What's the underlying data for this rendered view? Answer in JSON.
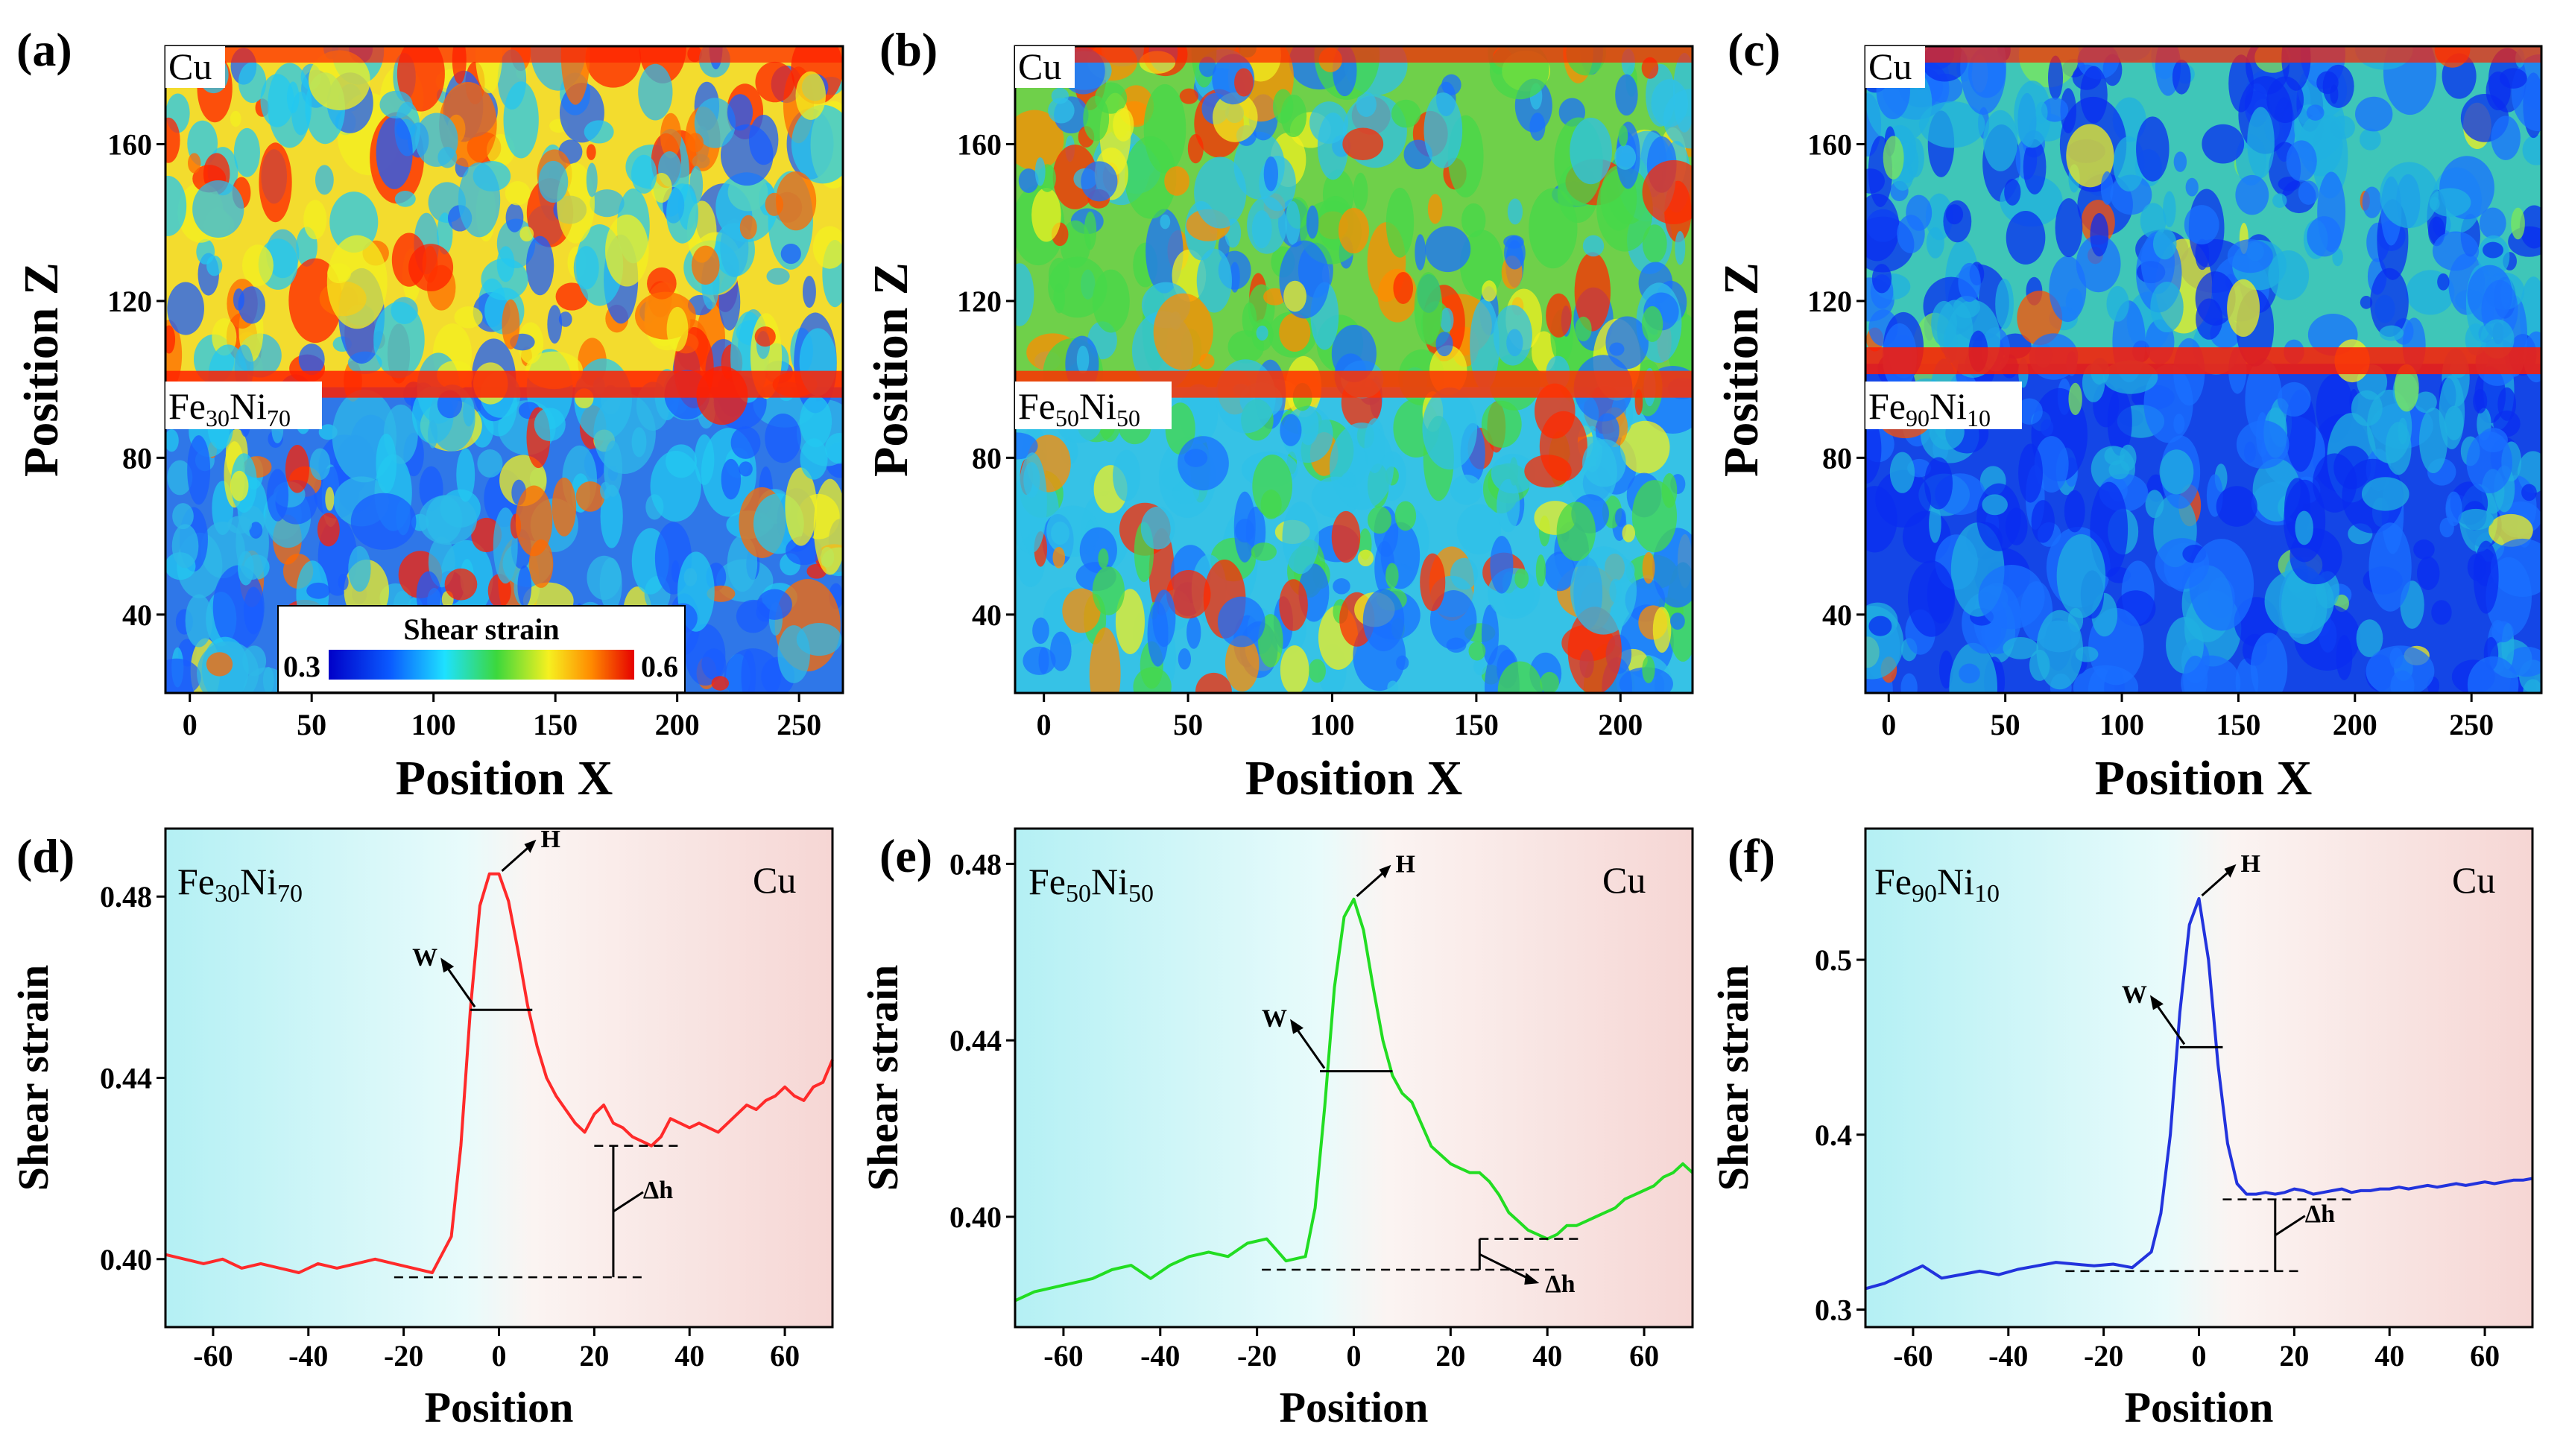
{
  "chart_data": [
    {
      "id": "a",
      "type": "heatmap",
      "panel_label": "(a)",
      "xlabel": "Position X",
      "ylabel": "Position Z",
      "xlim": [
        -10,
        268
      ],
      "ylim": [
        20,
        185
      ],
      "xticks": [
        0,
        50,
        100,
        150,
        200,
        250
      ],
      "yticks": [
        40,
        80,
        120,
        160
      ],
      "interface_z": 98,
      "top_label": "Cu",
      "bottom_label": {
        "base": "Fe",
        "sub1": "30",
        "mid": "Ni",
        "sub2": "70"
      },
      "colorbar": {
        "title": "Shear strain",
        "min": "0.3",
        "max": "0.6"
      },
      "colors": {
        "top": "#f3dc2e",
        "band": "#ff2000",
        "bottom": "#2f77e8"
      }
    },
    {
      "id": "b",
      "type": "heatmap",
      "panel_label": "(b)",
      "xlabel": "Position X",
      "ylabel": "Position Z",
      "xlim": [
        -10,
        225
      ],
      "ylim": [
        20,
        185
      ],
      "xticks": [
        0,
        50,
        100,
        150,
        200
      ],
      "yticks": [
        40,
        80,
        120,
        160
      ],
      "interface_z": 98,
      "top_label": "Cu",
      "bottom_label": {
        "base": "Fe",
        "sub1": "50",
        "mid": "Ni",
        "sub2": "50"
      },
      "colors": {
        "top": "#6fd04a",
        "band": "#ff3000",
        "bottom": "#36c2e6"
      }
    },
    {
      "id": "c",
      "type": "heatmap",
      "panel_label": "(c)",
      "xlabel": "Position X",
      "ylabel": "Position Z",
      "xlim": [
        -10,
        280
      ],
      "ylim": [
        20,
        185
      ],
      "xticks": [
        0,
        50,
        100,
        150,
        200,
        250
      ],
      "yticks": [
        40,
        80,
        120,
        160
      ],
      "interface_z": 104,
      "top_label": "Cu",
      "bottom_label": {
        "base": "Fe",
        "sub1": "90",
        "mid": "Ni",
        "sub2": "10"
      },
      "colors": {
        "top": "#3fc6b8",
        "band": "#ff1a00",
        "bottom": "#1446e6"
      }
    },
    {
      "id": "d",
      "type": "line",
      "panel_label": "(d)",
      "xlabel": "Position",
      "ylabel": "Shear strain",
      "xlim": [
        -70,
        70
      ],
      "ylim": [
        0.385,
        0.495
      ],
      "xticks": [
        -60,
        -40,
        -20,
        0,
        20,
        40,
        60
      ],
      "yticks": [
        0.4,
        0.44,
        0.48
      ],
      "ytick_labels": [
        "0.40",
        "0.44",
        "0.48"
      ],
      "left_label": {
        "base": "Fe",
        "sub1": "30",
        "mid": "Ni",
        "sub2": "70"
      },
      "right_label": "Cu",
      "line_color": "#ff2a2a",
      "series": [
        {
          "name": "Fe30Ni70",
          "x": [
            -70,
            -66,
            -62,
            -58,
            -54,
            -50,
            -46,
            -42,
            -38,
            -34,
            -30,
            -26,
            -22,
            -18,
            -14,
            -10,
            -8,
            -6,
            -4,
            -2,
            0,
            2,
            4,
            6,
            8,
            10,
            12,
            14,
            16,
            18,
            20,
            22,
            24,
            26,
            28,
            30,
            32,
            34,
            36,
            38,
            40,
            42,
            44,
            46,
            48,
            50,
            52,
            54,
            56,
            58,
            60,
            62,
            64,
            66,
            68,
            70
          ],
          "y": [
            0.401,
            0.4,
            0.399,
            0.4,
            0.398,
            0.399,
            0.398,
            0.397,
            0.399,
            0.398,
            0.399,
            0.4,
            0.399,
            0.398,
            0.397,
            0.405,
            0.425,
            0.455,
            0.478,
            0.485,
            0.485,
            0.479,
            0.468,
            0.456,
            0.447,
            0.44,
            0.436,
            0.433,
            0.43,
            0.428,
            0.432,
            0.434,
            0.43,
            0.429,
            0.427,
            0.426,
            0.425,
            0.427,
            0.431,
            0.43,
            0.429,
            0.43,
            0.429,
            0.428,
            0.43,
            0.432,
            0.434,
            0.433,
            0.435,
            0.436,
            0.438,
            0.436,
            0.435,
            0.438,
            0.439,
            0.444
          ]
        }
      ],
      "annotations": {
        "H": "H",
        "W": "W",
        "dh": "Δh"
      },
      "peak": [
        0,
        0.485
      ],
      "w_level": 0.455,
      "w_span": [
        -6,
        7
      ],
      "dh_low": 0.396,
      "dh_high": 0.425,
      "dh_x": 24,
      "dash_low": [
        -22,
        30
      ],
      "dash_high": [
        20,
        38
      ]
    },
    {
      "id": "e",
      "type": "line",
      "panel_label": "(e)",
      "xlabel": "Position",
      "ylabel": "Shear strain",
      "xlim": [
        -70,
        70
      ],
      "ylim": [
        0.375,
        0.488
      ],
      "xticks": [
        -60,
        -40,
        -20,
        0,
        20,
        40,
        60
      ],
      "yticks": [
        0.4,
        0.44,
        0.48
      ],
      "ytick_labels": [
        "0.40",
        "0.44",
        "0.48"
      ],
      "left_label": {
        "base": "Fe",
        "sub1": "50",
        "mid": "Ni",
        "sub2": "50"
      },
      "right_label": "Cu",
      "line_color": "#22dd22",
      "series": [
        {
          "name": "Fe50Ni50",
          "x": [
            -70,
            -66,
            -62,
            -58,
            -54,
            -50,
            -46,
            -42,
            -38,
            -34,
            -30,
            -26,
            -22,
            -18,
            -14,
            -10,
            -8,
            -6,
            -4,
            -2,
            0,
            2,
            4,
            6,
            8,
            10,
            12,
            14,
            16,
            18,
            20,
            22,
            24,
            26,
            28,
            30,
            32,
            34,
            36,
            38,
            40,
            42,
            44,
            46,
            48,
            50,
            52,
            54,
            56,
            58,
            60,
            62,
            64,
            66,
            68,
            70
          ],
          "y": [
            0.381,
            0.383,
            0.384,
            0.385,
            0.386,
            0.388,
            0.389,
            0.386,
            0.389,
            0.391,
            0.392,
            0.391,
            0.394,
            0.395,
            0.39,
            0.391,
            0.402,
            0.425,
            0.452,
            0.468,
            0.472,
            0.465,
            0.452,
            0.44,
            0.432,
            0.428,
            0.426,
            0.421,
            0.416,
            0.414,
            0.412,
            0.411,
            0.41,
            0.41,
            0.408,
            0.405,
            0.401,
            0.399,
            0.397,
            0.396,
            0.395,
            0.396,
            0.398,
            0.398,
            0.399,
            0.4,
            0.401,
            0.402,
            0.404,
            0.405,
            0.406,
            0.407,
            0.409,
            0.41,
            0.412,
            0.41
          ]
        }
      ],
      "annotations": {
        "H": "H",
        "W": "W",
        "dh": "Δh"
      },
      "peak": [
        0,
        0.472
      ],
      "w_level": 0.433,
      "w_span": [
        -7,
        8
      ],
      "dh_low": 0.388,
      "dh_high": 0.395,
      "dh_x": 26,
      "dash_low": [
        -19,
        42
      ],
      "dash_high": [
        26,
        47
      ]
    },
    {
      "id": "f",
      "type": "line",
      "panel_label": "(f)",
      "xlabel": "Position",
      "ylabel": "Shear strain",
      "xlim": [
        -70,
        70
      ],
      "ylim": [
        0.29,
        0.575
      ],
      "xticks": [
        -60,
        -40,
        -20,
        0,
        20,
        40,
        60
      ],
      "yticks": [
        0.3,
        0.4,
        0.5
      ],
      "ytick_labels": [
        "0.3",
        "0.4",
        "0.5"
      ],
      "left_label": {
        "base": "Fe",
        "sub1": "90",
        "mid": "Ni",
        "sub2": "10"
      },
      "right_label": "Cu",
      "line_color": "#2233dd",
      "series": [
        {
          "name": "Fe90Ni10",
          "x": [
            -70,
            -66,
            -62,
            -58,
            -54,
            -50,
            -46,
            -42,
            -38,
            -34,
            -30,
            -26,
            -22,
            -18,
            -14,
            -10,
            -8,
            -6,
            -4,
            -2,
            0,
            2,
            4,
            6,
            8,
            10,
            12,
            14,
            16,
            18,
            20,
            22,
            24,
            26,
            28,
            30,
            32,
            34,
            36,
            38,
            40,
            42,
            44,
            46,
            48,
            50,
            52,
            54,
            56,
            58,
            60,
            62,
            64,
            66,
            68,
            70
          ],
          "y": [
            0.312,
            0.315,
            0.32,
            0.325,
            0.318,
            0.32,
            0.322,
            0.32,
            0.323,
            0.325,
            0.327,
            0.326,
            0.325,
            0.326,
            0.324,
            0.333,
            0.355,
            0.4,
            0.47,
            0.52,
            0.535,
            0.5,
            0.44,
            0.395,
            0.372,
            0.366,
            0.366,
            0.367,
            0.366,
            0.367,
            0.369,
            0.368,
            0.366,
            0.367,
            0.368,
            0.369,
            0.367,
            0.368,
            0.368,
            0.369,
            0.369,
            0.37,
            0.369,
            0.37,
            0.371,
            0.37,
            0.371,
            0.372,
            0.371,
            0.372,
            0.373,
            0.372,
            0.373,
            0.374,
            0.374,
            0.375
          ]
        }
      ],
      "annotations": {
        "H": "H",
        "W": "W",
        "dh": "Δh"
      },
      "peak": [
        0,
        0.535
      ],
      "w_level": 0.45,
      "w_span": [
        -4,
        5
      ],
      "dh_low": 0.322,
      "dh_high": 0.363,
      "dh_x": 16,
      "dash_low": [
        -28,
        22
      ],
      "dash_high": [
        5,
        33
      ]
    }
  ]
}
